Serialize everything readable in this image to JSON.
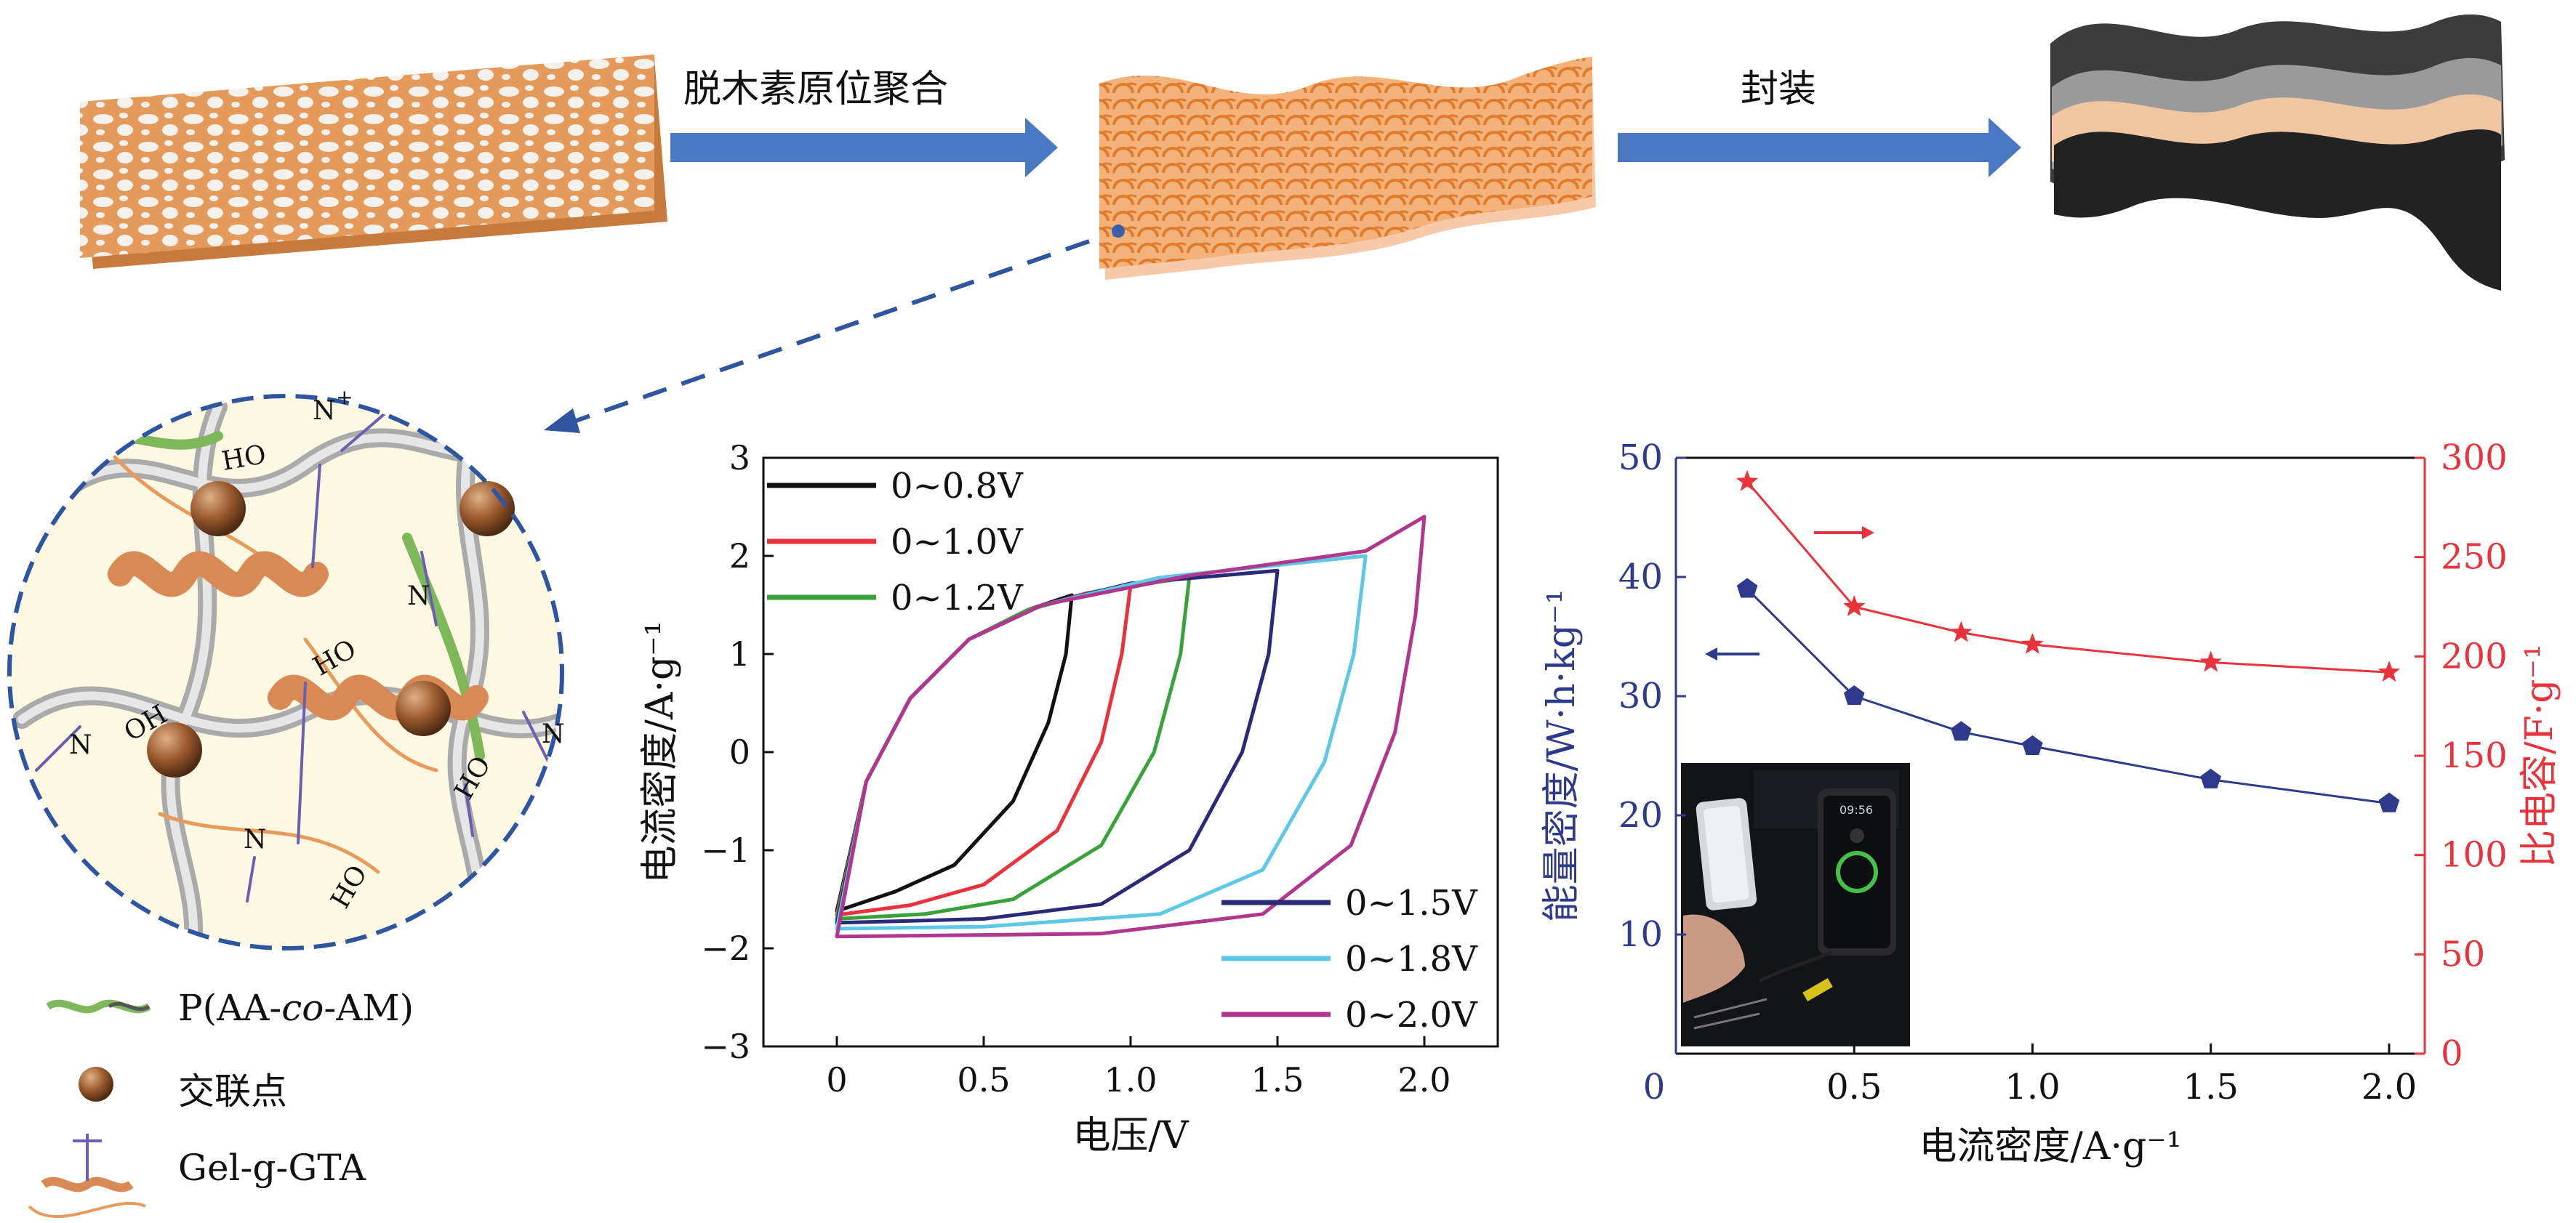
{
  "schematic": {
    "step1_label": "脱木素原位聚合",
    "step2_label": "封装",
    "molecule_labels": [
      "HO",
      "HO",
      "HO",
      "OH",
      "HO"
    ],
    "ion_labels": [
      "N",
      "N",
      "N",
      "N",
      "N"
    ],
    "ion_charge": "+"
  },
  "legend": [
    {
      "pre": "P(AA-",
      "em": "co",
      "post": "-AM)"
    },
    {
      "pre": "交联点",
      "em": "",
      "post": ""
    },
    {
      "pre": "Gel-g-GTA",
      "em": "",
      "post": ""
    }
  ],
  "phone_screen": {
    "time": "09:56"
  },
  "colors": {
    "blue": "#2e3a8c",
    "red": "#e8323c",
    "orange": "#e79a5c",
    "arrow_blue": "#4a78c2"
  },
  "chart_data": [
    {
      "type": "line",
      "title": "",
      "xlabel": "电压/V",
      "ylabel": "电流密度/A·g⁻¹",
      "xlim": [
        -0.25,
        2.25
      ],
      "ylim": [
        -3,
        3
      ],
      "xticks": [
        "0",
        "0.5",
        "1.0",
        "1.5",
        "2.0"
      ],
      "xtick_values": [
        0,
        0.5,
        1.0,
        1.5,
        2.0
      ],
      "yticks": [
        "−3",
        "−2",
        "−1",
        "0",
        "1",
        "2",
        "3"
      ],
      "ytick_values": [
        -3,
        -2,
        -1,
        0,
        1,
        2,
        3
      ],
      "series": [
        {
          "name": "0~0.8V",
          "color": "#111111",
          "vmax": 0.8,
          "top": [
            [
              0,
              -1.62
            ],
            [
              0.1,
              -0.3
            ],
            [
              0.25,
              0.55
            ],
            [
              0.45,
              1.15
            ],
            [
              0.65,
              1.45
            ],
            [
              0.8,
              1.6
            ]
          ],
          "bottom": [
            [
              0.8,
              1.6
            ],
            [
              0.78,
              1.0
            ],
            [
              0.72,
              0.3
            ],
            [
              0.6,
              -0.5
            ],
            [
              0.4,
              -1.15
            ],
            [
              0.2,
              -1.42
            ],
            [
              0,
              -1.62
            ]
          ]
        },
        {
          "name": "0~1.0V",
          "color": "#e8323c",
          "vmax": 1.0,
          "top": [
            [
              0,
              -1.66
            ],
            [
              0.1,
              -0.3
            ],
            [
              0.25,
              0.55
            ],
            [
              0.45,
              1.15
            ],
            [
              0.65,
              1.45
            ],
            [
              0.85,
              1.62
            ],
            [
              1.0,
              1.7
            ]
          ],
          "bottom": [
            [
              1.0,
              1.7
            ],
            [
              0.97,
              1.0
            ],
            [
              0.9,
              0.1
            ],
            [
              0.75,
              -0.8
            ],
            [
              0.5,
              -1.35
            ],
            [
              0.25,
              -1.56
            ],
            [
              0,
              -1.66
            ]
          ]
        },
        {
          "name": "0~1.2V",
          "color": "#3aa23a",
          "vmax": 1.2,
          "top": [
            [
              0,
              -1.7
            ],
            [
              0.1,
              -0.3
            ],
            [
              0.25,
              0.55
            ],
            [
              0.45,
              1.15
            ],
            [
              0.65,
              1.45
            ],
            [
              0.9,
              1.65
            ],
            [
              1.2,
              1.78
            ]
          ],
          "bottom": [
            [
              1.2,
              1.78
            ],
            [
              1.17,
              1.0
            ],
            [
              1.08,
              0.0
            ],
            [
              0.9,
              -0.95
            ],
            [
              0.6,
              -1.5
            ],
            [
              0.3,
              -1.65
            ],
            [
              0,
              -1.7
            ]
          ]
        },
        {
          "name": "0~1.5V",
          "color": "#2b2a78",
          "vmax": 1.5,
          "top": [
            [
              0,
              -1.74
            ],
            [
              0.1,
              -0.3
            ],
            [
              0.25,
              0.55
            ],
            [
              0.45,
              1.15
            ],
            [
              0.7,
              1.5
            ],
            [
              1.0,
              1.72
            ],
            [
              1.5,
              1.85
            ]
          ],
          "bottom": [
            [
              1.5,
              1.85
            ],
            [
              1.47,
              1.0
            ],
            [
              1.38,
              0.0
            ],
            [
              1.2,
              -1.0
            ],
            [
              0.9,
              -1.55
            ],
            [
              0.5,
              -1.7
            ],
            [
              0,
              -1.74
            ]
          ]
        },
        {
          "name": "0~1.8V",
          "color": "#5cc8e6",
          "vmax": 1.8,
          "top": [
            [
              0,
              -1.8
            ],
            [
              0.1,
              -0.3
            ],
            [
              0.25,
              0.55
            ],
            [
              0.45,
              1.15
            ],
            [
              0.7,
              1.5
            ],
            [
              1.1,
              1.78
            ],
            [
              1.8,
              2.0
            ]
          ],
          "bottom": [
            [
              1.8,
              2.0
            ],
            [
              1.76,
              1.0
            ],
            [
              1.66,
              -0.1
            ],
            [
              1.45,
              -1.2
            ],
            [
              1.1,
              -1.65
            ],
            [
              0.5,
              -1.78
            ],
            [
              0,
              -1.8
            ]
          ]
        },
        {
          "name": "0~2.0V",
          "color": "#b0368e",
          "vmax": 2.0,
          "top": [
            [
              0,
              -1.88
            ],
            [
              0.1,
              -0.3
            ],
            [
              0.25,
              0.55
            ],
            [
              0.45,
              1.15
            ],
            [
              0.7,
              1.5
            ],
            [
              1.2,
              1.8
            ],
            [
              1.8,
              2.05
            ],
            [
              2.0,
              2.4
            ]
          ],
          "bottom": [
            [
              2.0,
              2.4
            ],
            [
              1.97,
              1.4
            ],
            [
              1.9,
              0.2
            ],
            [
              1.75,
              -0.95
            ],
            [
              1.45,
              -1.65
            ],
            [
              0.9,
              -1.85
            ],
            [
              0,
              -1.88
            ]
          ]
        }
      ]
    },
    {
      "type": "line",
      "title": "",
      "xlabel": "电流密度/A·g⁻¹",
      "xlim": [
        0,
        2.1
      ],
      "xticks": [
        "0",
        "0.5",
        "1.0",
        "1.5",
        "2.0"
      ],
      "xtick_values": [
        0,
        0.5,
        1.0,
        1.5,
        2.0
      ],
      "ylabel_left": "能量密度/W·h·kg⁻¹",
      "ylim_left": [
        0,
        50
      ],
      "yticks_left": [
        "10",
        "20",
        "30",
        "40",
        "50"
      ],
      "ytick_values_left": [
        10,
        20,
        30,
        40,
        50
      ],
      "ylabel_right": "比电容/F·g⁻¹",
      "ylim_right": [
        0,
        300
      ],
      "yticks_right": [
        "0",
        "50",
        "100",
        "150",
        "200",
        "250",
        "300"
      ],
      "ytick_values_right": [
        0,
        50,
        100,
        150,
        200,
        250,
        300
      ],
      "series": [
        {
          "name": "能量密度",
          "axis": "left",
          "color": "#2e3a8c",
          "marker": "pentagon",
          "x": [
            0.2,
            0.5,
            0.8,
            1.0,
            1.5,
            2.0
          ],
          "values": [
            39,
            30,
            27,
            25.8,
            23,
            21
          ]
        },
        {
          "name": "比电容",
          "axis": "right",
          "color": "#e8323c",
          "marker": "star",
          "x": [
            0.2,
            0.5,
            0.8,
            1.0,
            1.5,
            2.0
          ],
          "values": [
            288,
            225,
            212,
            206,
            197,
            192
          ]
        }
      ]
    }
  ]
}
